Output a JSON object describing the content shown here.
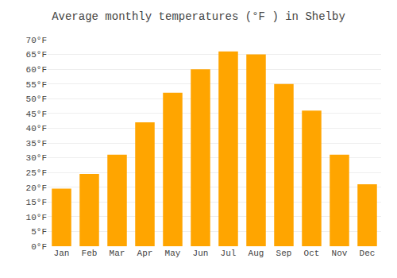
{
  "chart_data": {
    "type": "bar",
    "title": "Average monthly temperatures (°F ) in Shelby",
    "categories": [
      "Jan",
      "Feb",
      "Mar",
      "Apr",
      "May",
      "Jun",
      "Jul",
      "Aug",
      "Sep",
      "Oct",
      "Nov",
      "Dec"
    ],
    "values": [
      19.5,
      24.5,
      31,
      42,
      52,
      60,
      66,
      65,
      55,
      46,
      31,
      21
    ],
    "color": "#FFA500",
    "ylim": [
      0,
      70
    ],
    "yticks": [
      {
        "value": 0,
        "label": "0°F"
      },
      {
        "value": 5,
        "label": "5°F"
      },
      {
        "value": 10,
        "label": "10°F"
      },
      {
        "value": 15,
        "label": "15°F"
      },
      {
        "value": 20,
        "label": "20°F"
      },
      {
        "value": 25,
        "label": "25°F"
      },
      {
        "value": 30,
        "label": "30°F"
      },
      {
        "value": 35,
        "label": "35°F"
      },
      {
        "value": 40,
        "label": "40°F"
      },
      {
        "value": 45,
        "label": "45°F"
      },
      {
        "value": 50,
        "label": "50°F"
      },
      {
        "value": 55,
        "label": "55°F"
      },
      {
        "value": 60,
        "label": "60°F"
      },
      {
        "value": 65,
        "label": "65°F"
      },
      {
        "value": 70,
        "label": "70°F"
      }
    ],
    "grid": true
  }
}
